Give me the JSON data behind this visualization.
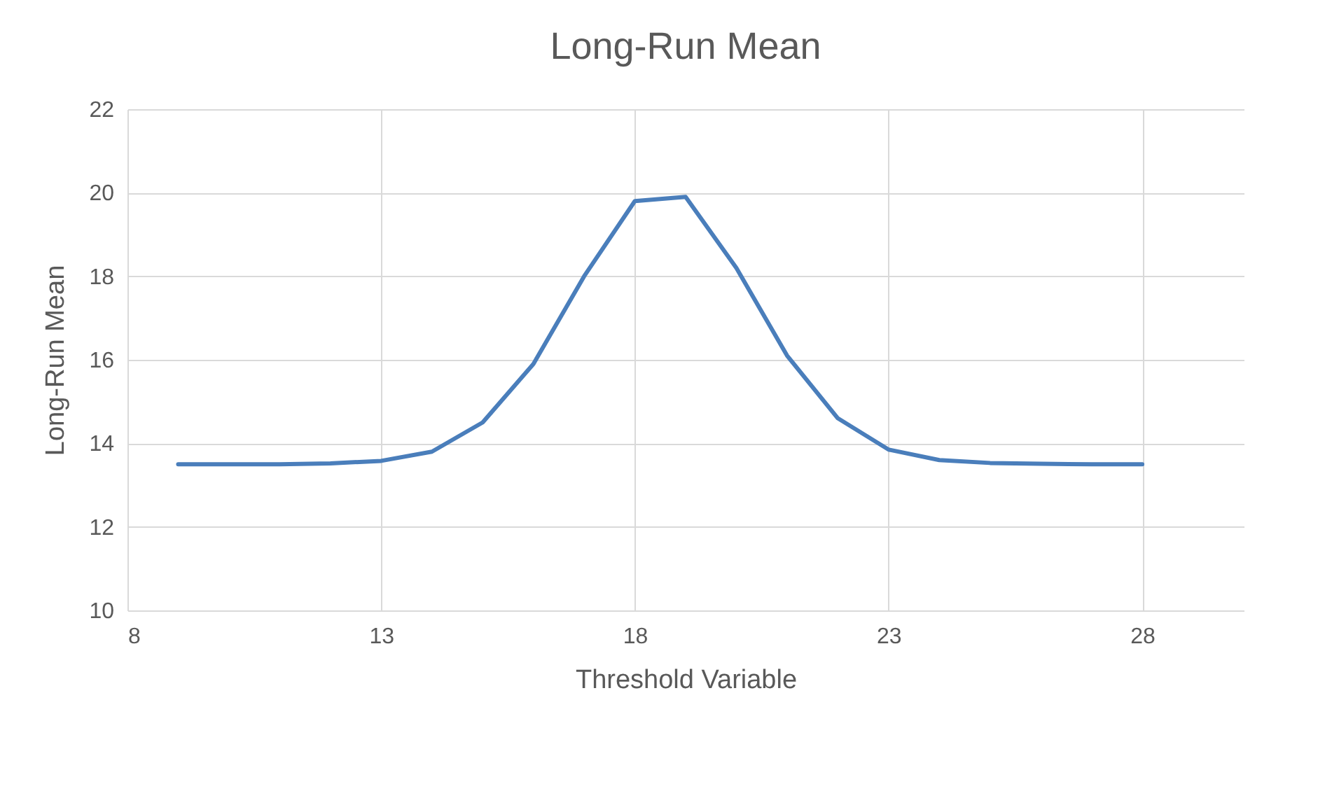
{
  "chart_data": {
    "type": "line",
    "title": "Long-Run Mean",
    "xlabel": "Threshold Variable",
    "ylabel": "Long-Run Mean",
    "x": [
      9,
      10,
      11,
      12,
      13,
      14,
      15,
      16,
      17,
      18,
      19,
      20,
      21,
      22,
      23,
      24,
      25,
      26,
      27,
      28
    ],
    "series": [
      {
        "color": "#4a7ebb",
        "values": [
          13.5,
          13.5,
          13.5,
          13.52,
          13.58,
          13.8,
          14.5,
          15.9,
          18.0,
          19.8,
          19.9,
          18.2,
          16.1,
          14.6,
          13.85,
          13.6,
          13.53,
          13.51,
          13.5,
          13.5
        ]
      }
    ],
    "xlim": [
      8,
      30
    ],
    "xticks": [
      8,
      13,
      18,
      23,
      28
    ],
    "ylim": [
      10,
      22
    ],
    "yticks": [
      10,
      12,
      14,
      16,
      18,
      20,
      22
    ],
    "grid": true,
    "marker": "none",
    "line_style": "solid"
  }
}
